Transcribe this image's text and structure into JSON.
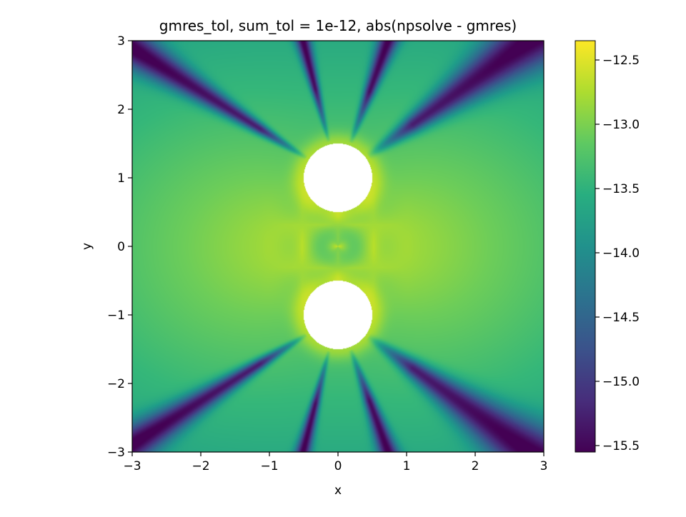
{
  "chart_data": {
    "type": "heatmap",
    "title": "gmres_tol, sum_tol = 1e-12, abs(npsolve - gmres)",
    "xlabel": "x",
    "ylabel": "y",
    "xlim": [
      -3,
      3
    ],
    "ylim": [
      -3,
      3
    ],
    "x_ticks": [
      -3,
      -2,
      -1,
      0,
      1,
      2,
      3
    ],
    "y_ticks": [
      -3,
      -2,
      -1,
      0,
      1,
      2,
      3
    ],
    "x_tick_labels": [
      "−3",
      "−2",
      "−1",
      "0",
      "1",
      "2",
      "3"
    ],
    "y_tick_labels": [
      "−3",
      "−2",
      "−1",
      "0",
      "1",
      "2",
      "3"
    ],
    "colormap": "viridis",
    "color_range": [
      -15.55,
      -12.35
    ],
    "colorbar_ticks": [
      -12.5,
      -13.0,
      -13.5,
      -14.0,
      -14.5,
      -15.0,
      -15.5
    ],
    "colorbar_tick_labels": [
      "−12.5",
      "−13.0",
      "−13.5",
      "−14.0",
      "−14.5",
      "−15.0",
      "−15.5"
    ],
    "masked_disks": [
      {
        "center": [
          0,
          1
        ],
        "radius": 0.5
      },
      {
        "center": [
          0,
          -1
        ],
        "radius": 0.5
      }
    ],
    "grid": false
  }
}
